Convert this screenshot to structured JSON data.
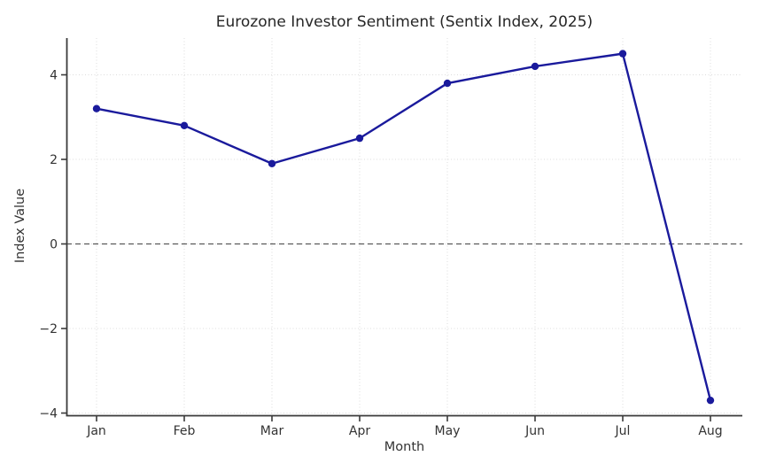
{
  "chart_data": {
    "type": "line",
    "title": "Eurozone Investor Sentiment (Sentix Index, 2025)",
    "xlabel": "Month",
    "ylabel": "Index Value",
    "categories": [
      "Jan",
      "Feb",
      "Mar",
      "Apr",
      "May",
      "Jun",
      "Jul",
      "Aug"
    ],
    "series": [
      {
        "name": "Sentix Index",
        "values": [
          3.2,
          2.8,
          1.9,
          2.5,
          3.8,
          4.2,
          4.5,
          -3.7
        ]
      }
    ],
    "yticks": [
      4,
      2,
      0,
      -2,
      -4
    ],
    "ylim": [
      -4.1,
      4.9
    ],
    "grid": true,
    "grid_style": "dotted",
    "zero_line": true,
    "legend": "none",
    "colors": {
      "line": "#1a1a9c",
      "marker": "#1a1a9c",
      "grid": "#dcdcdc",
      "zero_line": "#595959",
      "axis": "#3a3a3a",
      "tick_text": "#333333",
      "title_text": "#262626"
    }
  }
}
